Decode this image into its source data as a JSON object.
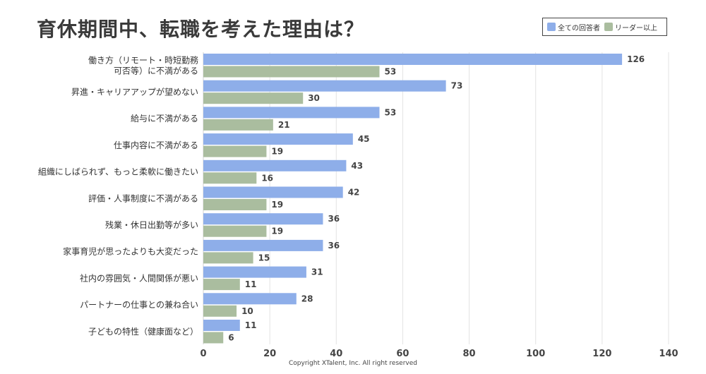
{
  "chart_data": {
    "type": "bar",
    "orientation": "horizontal",
    "title": "育休期間中、転職を考えた理由は？",
    "categories": [
      [
        "働き方（リモート・時短勤務",
        "可否等）に不満がある"
      ],
      [
        "昇進・キャリアアップが望めない"
      ],
      [
        "給与に不満がある"
      ],
      [
        "仕事内容に不満がある"
      ],
      [
        "組織にしばられず、もっと柔軟に働きたい"
      ],
      [
        "評価・人事制度に不満がある"
      ],
      [
        "残業・休日出勤等が多い"
      ],
      [
        "家事育児が思ったよりも大変だった"
      ],
      [
        "社内の雰囲気・人間関係が悪い"
      ],
      [
        "パートナーの仕事との兼ね合い"
      ],
      [
        "子どもの特性（健康面など）"
      ]
    ],
    "series": [
      {
        "name": "全ての回答者",
        "color": "#8eaee9",
        "values": [
          126,
          73,
          53,
          45,
          43,
          42,
          36,
          36,
          31,
          28,
          11
        ]
      },
      {
        "name": "リーダー以上",
        "color": "#aabd9f",
        "values": [
          53,
          30,
          21,
          19,
          16,
          19,
          19,
          15,
          11,
          10,
          6
        ]
      }
    ],
    "xlim": [
      0,
      140
    ],
    "xticks": [
      0,
      20,
      40,
      60,
      80,
      100,
      120,
      140
    ],
    "grid": true,
    "legend_position": "top-right"
  },
  "footer": {
    "copyright": "Copyright XTalent, Inc. All right reserved"
  }
}
